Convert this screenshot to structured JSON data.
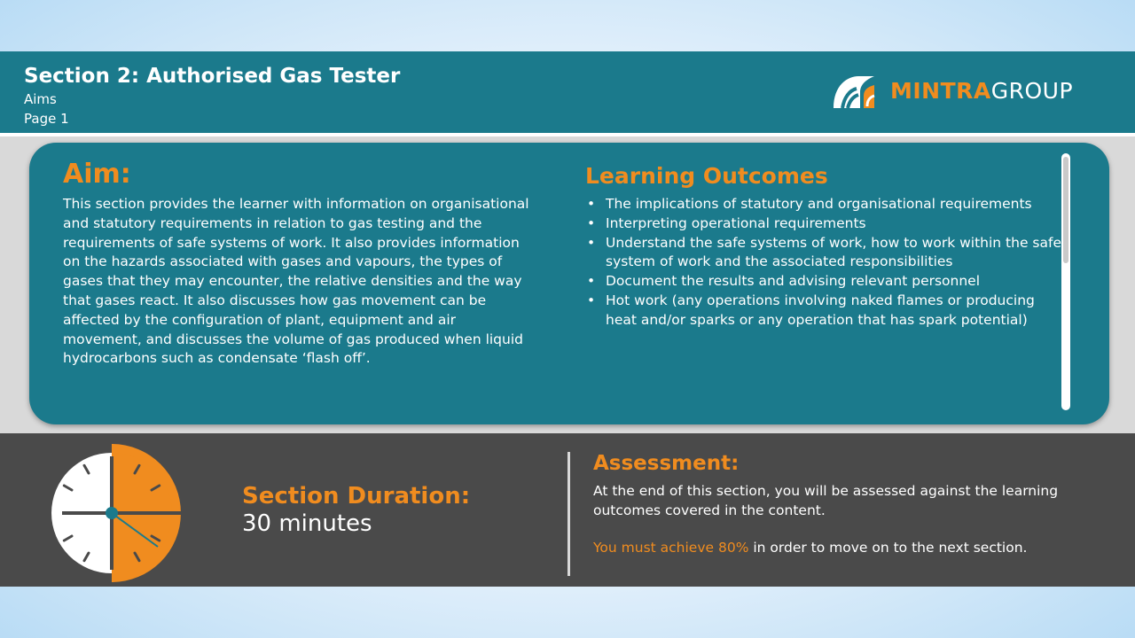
{
  "header": {
    "title": "Section 2: Authorised Gas Tester",
    "subtitle": "Aims",
    "page": "Page 1",
    "logo": {
      "primary": "MINTRA",
      "secondary": "GROUP",
      "icon": "mintra-logo-icon"
    }
  },
  "aim": {
    "heading": "Aim:",
    "body": "This section provides the learner with information on organisational and statutory requirements in relation to gas testing and the requirements of safe systems of work. It also provides information on the hazards associated with gases and vapours, the types of gases that they may encounter, the relative densities and the way that gases react. It also discusses how gas movement can be affected by the configuration of plant, equipment and air movement, and discusses the volume of gas produced when liquid hydrocarbons such as condensate ‘flash off’."
  },
  "learning_outcomes": {
    "heading": "Learning Outcomes",
    "bullet": "•",
    "items": [
      "The implications of statutory and organisational requirements",
      "Interpreting operational requirements",
      "Understand the safe systems of work, how to work within the safe system of work and the associated responsibilities",
      "Document the results and advising relevant personnel",
      "Hot work (any operations involving naked flames or producing heat and/or sparks or any operation that has spark potential)"
    ]
  },
  "duration": {
    "label": "Section Duration:",
    "value": "30 minutes",
    "icon": "clock-icon"
  },
  "assessment": {
    "heading": "Assessment:",
    "body": "At the end of this section, you will be assessed against the learning outcomes covered in the content.",
    "note_highlight": "You must achieve 80%",
    "note_rest": " in order to move on to the next section."
  },
  "colors": {
    "teal": "#1b7a8c",
    "orange": "#f08c1f",
    "dark_gray": "#4a4a4a",
    "light_gray": "#d9d9d9"
  }
}
